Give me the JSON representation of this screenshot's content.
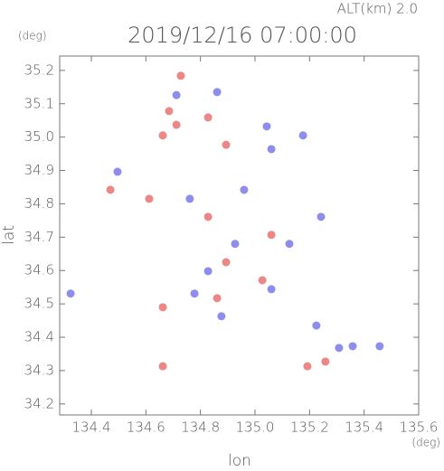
{
  "chart_data": {
    "type": "scatter",
    "title": "2019/12/16 07:00:00",
    "subtitle": "ALT(km) 2.0",
    "x_label": "lon",
    "y_label": "lat",
    "x_unit": "(deg)",
    "y_unit": "(deg)",
    "xlim": [
      134.284,
      135.6
    ],
    "ylim": [
      34.167,
      35.243
    ],
    "xticks": [
      134.4,
      134.6,
      134.8,
      {
        "value": 135.0,
        "label": "135.0"
      },
      135.2,
      135.4,
      135.6
    ],
    "yticks": [
      34.2,
      34.3,
      34.4,
      34.5,
      34.6,
      34.7,
      34.8,
      34.9,
      {
        "value": 35.0,
        "label": "35.0"
      },
      35.1,
      35.2
    ],
    "x": [
      134.728,
      134.712,
      134.685,
      134.712,
      134.662,
      134.861,
      134.828,
      135.043,
      134.894,
      135.06,
      135.176,
      134.496,
      134.47,
      134.612,
      134.761,
      134.828,
      134.96,
      135.242,
      135.06,
      134.927,
      135.126,
      134.828,
      134.894,
      135.027,
      135.06,
      134.861,
      134.778,
      134.662,
      134.324,
      134.877,
      135.225,
      135.258,
      135.308,
      135.358,
      135.457,
      134.662,
      135.192
    ],
    "y": [
      35.184,
      35.126,
      35.078,
      35.037,
      35.005,
      35.135,
      35.059,
      35.032,
      34.977,
      34.964,
      35.005,
      34.896,
      34.842,
      34.815,
      34.815,
      34.761,
      34.842,
      34.761,
      34.707,
      34.68,
      34.68,
      34.598,
      34.625,
      34.571,
      34.544,
      34.517,
      34.531,
      34.49,
      34.531,
      34.463,
      34.435,
      34.327,
      34.368,
      34.373,
      34.373,
      34.313,
      34.313
    ],
    "colors": [
      "#e86868",
      "#7070e8",
      "#e86868",
      "#e86868",
      "#e86868",
      "#7070e8",
      "#e86868",
      "#7070e8",
      "#e86868",
      "#7070e8",
      "#7070e8",
      "#7070e8",
      "#e86868",
      "#e86868",
      "#7070e8",
      "#e86868",
      "#7070e8",
      "#7070e8",
      "#e86868",
      "#7070e8",
      "#7070e8",
      "#7070e8",
      "#e86868",
      "#e86868",
      "#7070e8",
      "#e86868",
      "#7070e8",
      "#e86868",
      "#7070e8",
      "#7070e8",
      "#7070e8",
      "#e86868",
      "#7070e8",
      "#7070e8",
      "#7070e8",
      "#e86868",
      "#e86868"
    ]
  }
}
